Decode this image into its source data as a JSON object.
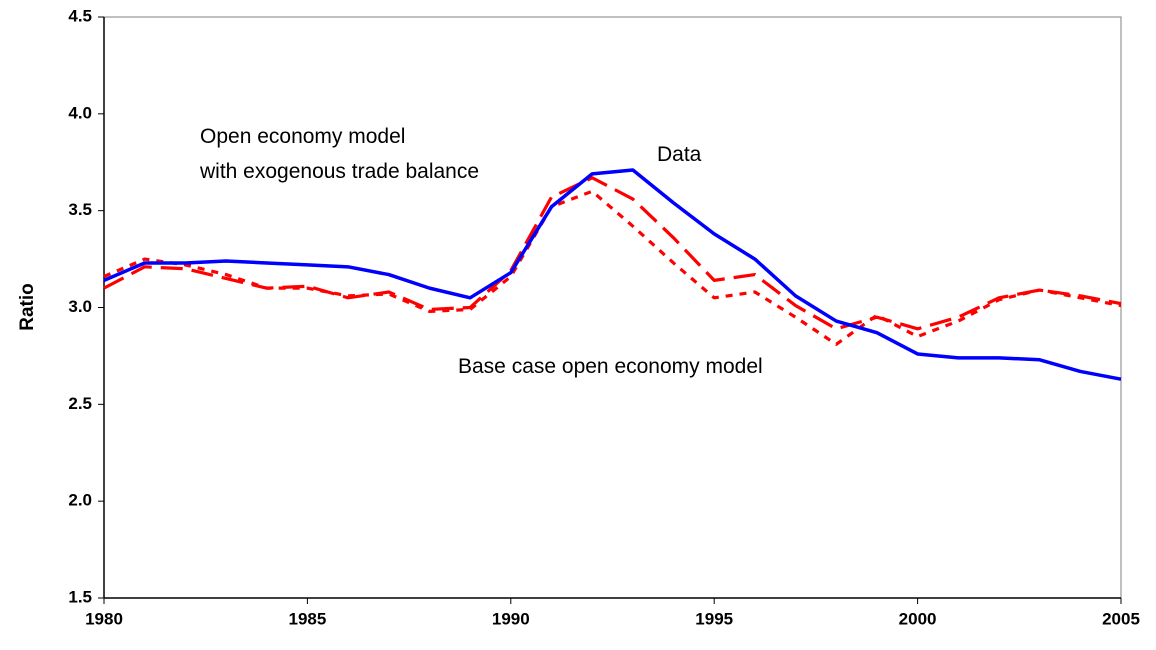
{
  "chart_data": {
    "type": "line",
    "ylabel": "Ratio",
    "x": [
      1980,
      1981,
      1982,
      1983,
      1984,
      1985,
      1986,
      1987,
      1988,
      1989,
      1990,
      1991,
      1992,
      1993,
      1994,
      1995,
      1996,
      1997,
      1998,
      1999,
      2000,
      2001,
      2002,
      2003,
      2004,
      2005
    ],
    "xlim": [
      1980,
      2005
    ],
    "xticks": [
      1980,
      1985,
      1990,
      1995,
      2000,
      2005
    ],
    "ylim": [
      1.5,
      4.5
    ],
    "yticks": [
      1.5,
      {
        "value": 2,
        "label": "2.0"
      },
      2.5,
      {
        "value": 3,
        "label": "3.0"
      },
      3.5,
      {
        "value": 4,
        "label": "4.0"
      },
      4.5
    ],
    "series": [
      {
        "name": "Data",
        "color": "#0000ff",
        "style": "solid",
        "values": [
          3.14,
          3.23,
          3.23,
          3.24,
          3.23,
          3.22,
          3.21,
          3.17,
          3.1,
          3.05,
          3.18,
          3.52,
          3.69,
          3.71,
          3.54,
          3.38,
          3.25,
          3.06,
          2.93,
          2.87,
          2.76,
          2.74,
          2.74,
          2.73,
          2.67,
          2.63
        ]
      },
      {
        "name": "Open economy model\nwith exogenous trade balance",
        "color": "#ff0000",
        "style": "dashed",
        "values": [
          3.1,
          3.21,
          3.2,
          3.15,
          3.1,
          3.11,
          3.05,
          3.08,
          2.99,
          3.0,
          3.19,
          3.57,
          3.67,
          3.56,
          3.36,
          3.14,
          3.17,
          3.01,
          2.89,
          2.95,
          2.89,
          2.95,
          3.05,
          3.09,
          3.06,
          3.02
        ]
      },
      {
        "name": "Base case open economy model",
        "color": "#ff0000",
        "style": "dotted",
        "values": [
          3.16,
          3.25,
          3.22,
          3.17,
          3.1,
          3.1,
          3.06,
          3.07,
          2.98,
          2.99,
          3.16,
          3.52,
          3.6,
          3.42,
          3.23,
          3.05,
          3.08,
          2.95,
          2.81,
          2.96,
          2.85,
          2.93,
          3.04,
          3.09,
          3.05,
          3.01
        ]
      }
    ]
  }
}
